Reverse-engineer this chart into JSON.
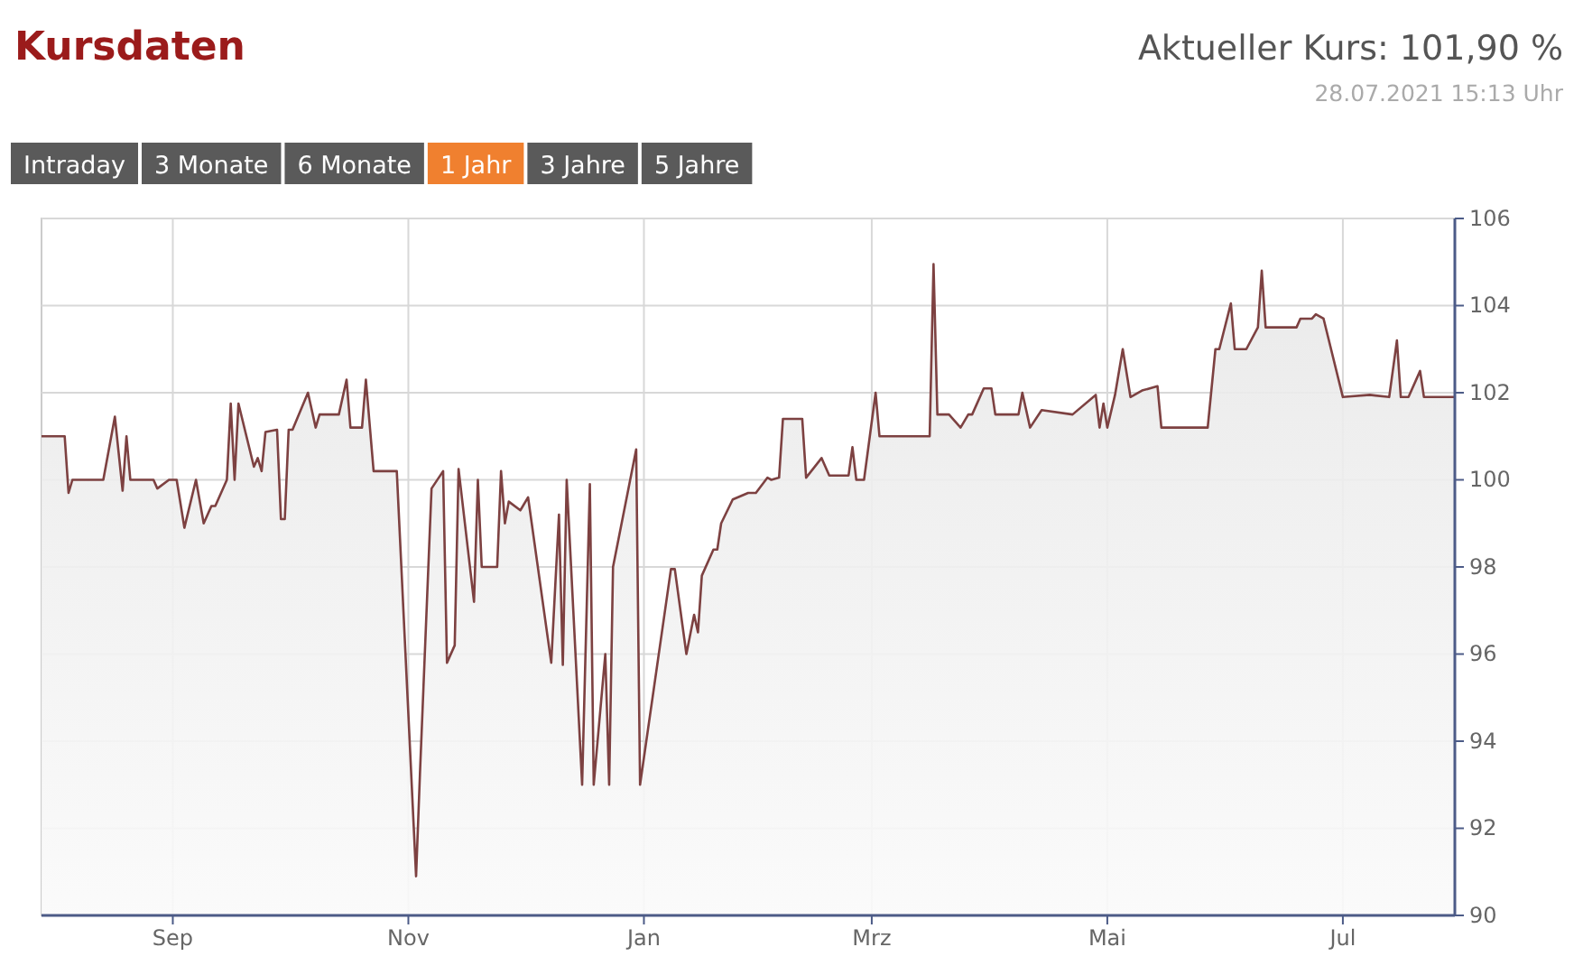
{
  "chart_data": {
    "type": "area",
    "title": "Kursdaten",
    "annotations": [
      "Aktueller Kurs: 101,90 %",
      "28.07.2021 15:13 Uhr",
      "Intraday",
      "3 Monate",
      "6 Monate",
      "1 Jahr",
      "3 Jahre",
      "5 Jahre"
    ],
    "xlim": [
      "2020-07-29",
      "2021-07-30"
    ],
    "xticks": [
      {
        "value": "2020-09-01",
        "label": "Sep"
      },
      {
        "value": "2020-11-01",
        "label": "Nov"
      },
      {
        "value": "2021-01-01",
        "label": "Jan"
      },
      {
        "value": "2021-03-01",
        "label": "Mrz"
      },
      {
        "value": "2021-05-01",
        "label": "Mai"
      },
      {
        "value": "2021-07-01",
        "label": "Jul"
      }
    ],
    "ylim": [
      90,
      106
    ],
    "yticks": [
      90,
      92,
      94,
      96,
      98,
      100,
      102,
      104,
      106
    ],
    "grid": true,
    "series": [
      {
        "color": "#7d4141",
        "x": [
          "2020-07-29",
          "2020-08-04",
          "2020-08-05",
          "2020-08-06",
          "2020-08-14",
          "2020-08-17",
          "2020-08-19",
          "2020-08-20",
          "2020-08-21",
          "2020-08-27",
          "2020-08-28",
          "2020-08-31",
          "2020-09-02",
          "2020-09-04",
          "2020-09-07",
          "2020-09-09",
          "2020-09-11",
          "2020-09-12",
          "2020-09-15",
          "2020-09-16",
          "2020-09-17",
          "2020-09-18",
          "2020-09-22",
          "2020-09-23",
          "2020-09-24",
          "2020-09-25",
          "2020-09-28",
          "2020-09-29",
          "2020-09-30",
          "2020-10-01",
          "2020-10-02",
          "2020-10-06",
          "2020-10-08",
          "2020-10-09",
          "2020-10-14",
          "2020-10-16",
          "2020-10-17",
          "2020-10-20",
          "2020-10-21",
          "2020-10-23",
          "2020-10-29",
          "2020-11-03",
          "2020-11-04",
          "2020-11-07",
          "2020-11-10",
          "2020-11-11",
          "2020-11-13",
          "2020-11-14",
          "2020-11-18",
          "2020-11-19",
          "2020-11-20",
          "2020-11-24",
          "2020-11-25",
          "2020-11-26",
          "2020-11-27",
          "2020-11-30",
          "2020-12-02",
          "2020-12-08",
          "2020-12-10",
          "2020-12-11",
          "2020-12-12",
          "2020-12-16",
          "2020-12-18",
          "2020-12-19",
          "2020-12-22",
          "2020-12-23",
          "2020-12-24",
          "2020-12-30",
          "2020-12-31",
          "2021-01-08",
          "2021-01-09",
          "2021-01-12",
          "2021-01-14",
          "2021-01-15",
          "2021-01-16",
          "2021-01-19",
          "2021-01-20",
          "2021-01-21",
          "2021-01-24",
          "2021-01-28",
          "2021-01-30",
          "2021-02-02",
          "2021-02-03",
          "2021-02-05",
          "2021-02-06",
          "2021-02-11",
          "2021-02-12",
          "2021-02-16",
          "2021-02-18",
          "2021-02-23",
          "2021-02-24",
          "2021-02-25",
          "2021-02-27",
          "2021-03-02",
          "2021-03-03",
          "2021-03-05",
          "2021-03-16",
          "2021-03-17",
          "2021-03-18",
          "2021-03-21",
          "2021-03-24",
          "2021-03-26",
          "2021-03-27",
          "2021-03-30",
          "2021-04-01",
          "2021-04-02",
          "2021-04-08",
          "2021-04-09",
          "2021-04-11",
          "2021-04-14",
          "2021-04-22",
          "2021-04-28",
          "2021-04-29",
          "2021-04-30",
          "2021-05-01",
          "2021-05-03",
          "2021-05-05",
          "2021-05-07",
          "2021-05-10",
          "2021-05-14",
          "2021-05-15",
          "2021-05-27",
          "2021-05-29",
          "2021-05-30",
          "2021-06-02",
          "2021-06-03",
          "2021-06-06",
          "2021-06-09",
          "2021-06-10",
          "2021-06-11",
          "2021-06-19",
          "2021-06-20",
          "2021-06-23",
          "2021-06-24",
          "2021-06-26",
          "2021-07-01",
          "2021-07-08",
          "2021-07-13",
          "2021-07-15",
          "2021-07-16",
          "2021-07-18",
          "2021-07-21",
          "2021-07-22",
          "2021-07-30"
        ],
        "values": [
          101.0,
          101.0,
          99.7,
          100.0,
          100.0,
          101.45,
          99.75,
          101.0,
          100.0,
          100.0,
          99.8,
          100.0,
          100.0,
          98.9,
          100.0,
          99.0,
          99.4,
          99.4,
          100.0,
          101.75,
          100.0,
          101.75,
          100.3,
          100.5,
          100.2,
          101.1,
          101.15,
          99.1,
          99.1,
          101.15,
          101.15,
          102.0,
          101.2,
          101.5,
          101.5,
          102.3,
          101.2,
          101.2,
          102.3,
          100.2,
          100.2,
          90.9,
          93.25,
          99.8,
          100.2,
          95.8,
          96.2,
          100.25,
          97.2,
          100.0,
          98.0,
          98.0,
          100.2,
          99.0,
          99.5,
          99.3,
          99.6,
          95.8,
          99.2,
          95.75,
          100.0,
          93.0,
          99.9,
          93.0,
          96.0,
          93.0,
          98.0,
          100.7,
          93.0,
          97.95,
          97.95,
          96.0,
          96.9,
          96.5,
          97.8,
          98.4,
          98.4,
          99.0,
          99.55,
          99.7,
          99.7,
          100.05,
          100.0,
          100.05,
          101.4,
          101.4,
          100.05,
          100.5,
          100.1,
          100.1,
          100.75,
          100.0,
          100.0,
          102.0,
          101.0,
          101.0,
          101.0,
          104.95,
          101.5,
          101.5,
          101.2,
          101.5,
          101.5,
          102.1,
          102.1,
          101.5,
          101.5,
          102.0,
          101.2,
          101.6,
          101.5,
          101.95,
          101.2,
          101.75,
          101.2,
          101.95,
          103.0,
          101.9,
          102.05,
          102.15,
          101.2,
          101.2,
          103.0,
          103.0,
          104.05,
          103.0,
          103.0,
          103.5,
          104.8,
          103.5,
          103.5,
          103.7,
          103.7,
          103.8,
          103.7,
          101.9,
          101.95,
          101.9,
          103.2,
          101.9,
          101.9,
          102.5,
          101.9,
          101.9
        ]
      }
    ]
  }
}
